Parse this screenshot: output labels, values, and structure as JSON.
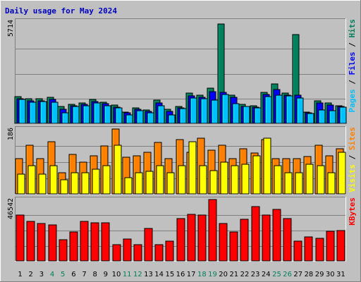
{
  "title": "Daily usage for May 2024",
  "colors": {
    "title": "#0000c0",
    "hits": "#00805c",
    "files": "#0000ff",
    "pages": "#00c0ff",
    "visits": "#ffff00",
    "sites": "#ff8000",
    "kbytes": "#ff0000",
    "weekend": "#00805c",
    "weekday": "#000000"
  },
  "chart_data": {
    "type": "bar",
    "title": "Daily usage for May 2024",
    "categories": [
      "1",
      "2",
      "3",
      "4",
      "5",
      "6",
      "7",
      "8",
      "9",
      "10",
      "11",
      "12",
      "13",
      "14",
      "15",
      "16",
      "17",
      "18",
      "19",
      "20",
      "21",
      "22",
      "23",
      "24",
      "25",
      "26",
      "27",
      "28",
      "29",
      "30",
      "31"
    ],
    "weekend_days": [
      4,
      5,
      11,
      12,
      18,
      19,
      25,
      26
    ],
    "panels": [
      {
        "name": "top",
        "max_label": "5714",
        "ylim": [
          0,
          5714
        ],
        "legend": [
          "Hits",
          "Files",
          "Pages"
        ],
        "series": [
          {
            "name": "Hits",
            "values": [
              1520,
              1400,
              1420,
              1480,
              950,
              1100,
              1180,
              1370,
              1210,
              1040,
              650,
              900,
              770,
              1310,
              800,
              950,
              1720,
              1620,
              2010,
              5650,
              1600,
              1080,
              1010,
              1770,
              2240,
              1720,
              5050,
              640,
              1300,
              1150,
              1000
            ]
          },
          {
            "name": "Files",
            "values": [
              1390,
              1270,
              1300,
              1350,
              800,
              1000,
              1070,
              1250,
              1110,
              930,
              590,
              800,
              680,
              1160,
              700,
              880,
              1560,
              1470,
              1820,
              1770,
              1480,
              980,
              920,
              1650,
              1940,
              1600,
              1590,
              590,
              1180,
              1040,
              950
            ]
          },
          {
            "name": "Pages",
            "values": [
              1350,
              1220,
              1250,
              1210,
              600,
              950,
              1000,
              1150,
              1000,
              890,
              500,
              720,
              620,
              990,
              500,
              840,
              1460,
              1400,
              1320,
              1640,
              1120,
              950,
              890,
              1520,
              1600,
              1560,
              1460,
              580,
              780,
              730,
              920
            ]
          }
        ]
      },
      {
        "name": "middle",
        "max_label": "186",
        "ylim": [
          0,
          186
        ],
        "legend": [
          "Sites",
          "Visits"
        ],
        "series": [
          {
            "name": "Sites",
            "values": [
              100,
              140,
              100,
              150,
              60,
              114,
              90,
              110,
              138,
              186,
              104,
              110,
              120,
              148,
              100,
              156,
              120,
              160,
              126,
              140,
              100,
              130,
              118,
              156,
              100,
              100,
              100,
              106,
              140,
              110,
              130
            ]
          },
          {
            "name": "Visits",
            "values": [
              56,
              80,
              56,
              80,
              40,
              60,
              60,
              70,
              80,
              140,
              46,
              60,
              64,
              80,
              60,
              80,
              150,
              80,
              66,
              90,
              80,
              84,
              110,
              160,
              80,
              60,
              60,
              84,
              80,
              60,
              120
            ]
          }
        ]
      },
      {
        "name": "bottom",
        "max_label": "46542",
        "ylim": [
          0,
          46542
        ],
        "legend": [
          "KBytes"
        ],
        "series": [
          {
            "name": "KBytes",
            "values": [
              34400,
              29600,
              28400,
              27000,
              15900,
              22000,
              30000,
              28900,
              28500,
              12000,
              16500,
              12400,
              24500,
              12400,
              15000,
              31800,
              35400,
              34800,
              46300,
              28200,
              22000,
              31500,
              40900,
              34800,
              39000,
              31800,
              14700,
              18000,
              16900,
              22600,
              22700
            ]
          }
        ]
      }
    ]
  }
}
